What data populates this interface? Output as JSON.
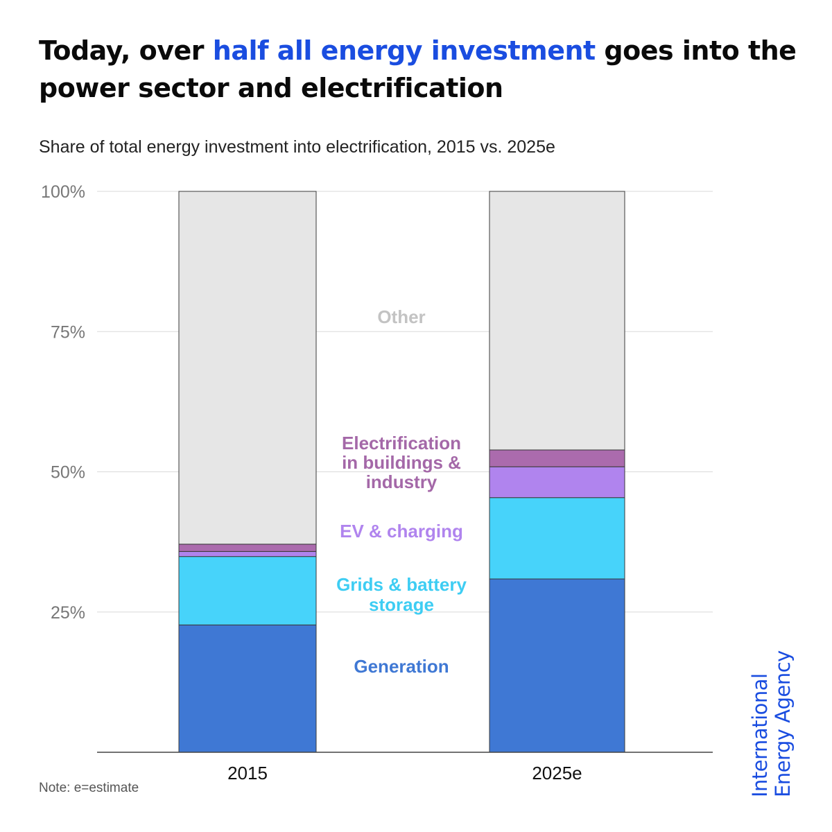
{
  "title": {
    "part1": "Today, over ",
    "highlight": "half all energy investment",
    "part2": " goes into the power sector and electrification"
  },
  "subtitle": "Share of total energy investment into electrification, 2015 vs. 2025e",
  "note": "Note: e=estimate",
  "logo": {
    "line1": "International",
    "line2": "Energy Agency"
  },
  "colors": {
    "title_highlight": "#1a4de0",
    "generation": "#3f78d4",
    "grids": "#47d3fa",
    "ev": "#b084ee",
    "buildings": "#ab6bad",
    "other": "#e6e6e6",
    "other_label": "#c3c3c3"
  },
  "chart_data": {
    "type": "bar",
    "stacked": true,
    "categories": [
      "2015",
      "2025e"
    ],
    "series": [
      {
        "name": "Generation",
        "label_lines": [
          "Generation"
        ],
        "color": "#3f78d4",
        "label_color": "#3f78d4",
        "values": [
          22.7,
          30.9
        ]
      },
      {
        "name": "Grids & battery storage",
        "label_lines": [
          "Grids & battery",
          "storage"
        ],
        "color": "#47d3fa",
        "label_color": "#3ecdf3",
        "values": [
          12.2,
          14.5
        ]
      },
      {
        "name": "EV & charging",
        "label_lines": [
          "EV & charging"
        ],
        "color": "#b084ee",
        "label_color": "#b084ee",
        "values": [
          0.9,
          5.5
        ]
      },
      {
        "name": "Electrification in buildings & industry",
        "label_lines": [
          "Electrification",
          "in buildings &",
          "industry"
        ],
        "color": "#ab6bad",
        "label_color": "#a468a8",
        "values": [
          1.3,
          3.0
        ]
      },
      {
        "name": "Other",
        "label_lines": [
          "Other"
        ],
        "color": "#e6e6e6",
        "label_color": "#c3c3c3",
        "values": [
          62.9,
          46.1
        ]
      }
    ],
    "ylim": [
      0,
      100
    ],
    "yticks": [
      25,
      50,
      75,
      100
    ],
    "ytick_labels": [
      "25%",
      "50%",
      "75%",
      "100%"
    ],
    "grid": true,
    "legend": "inline labels between bars"
  }
}
